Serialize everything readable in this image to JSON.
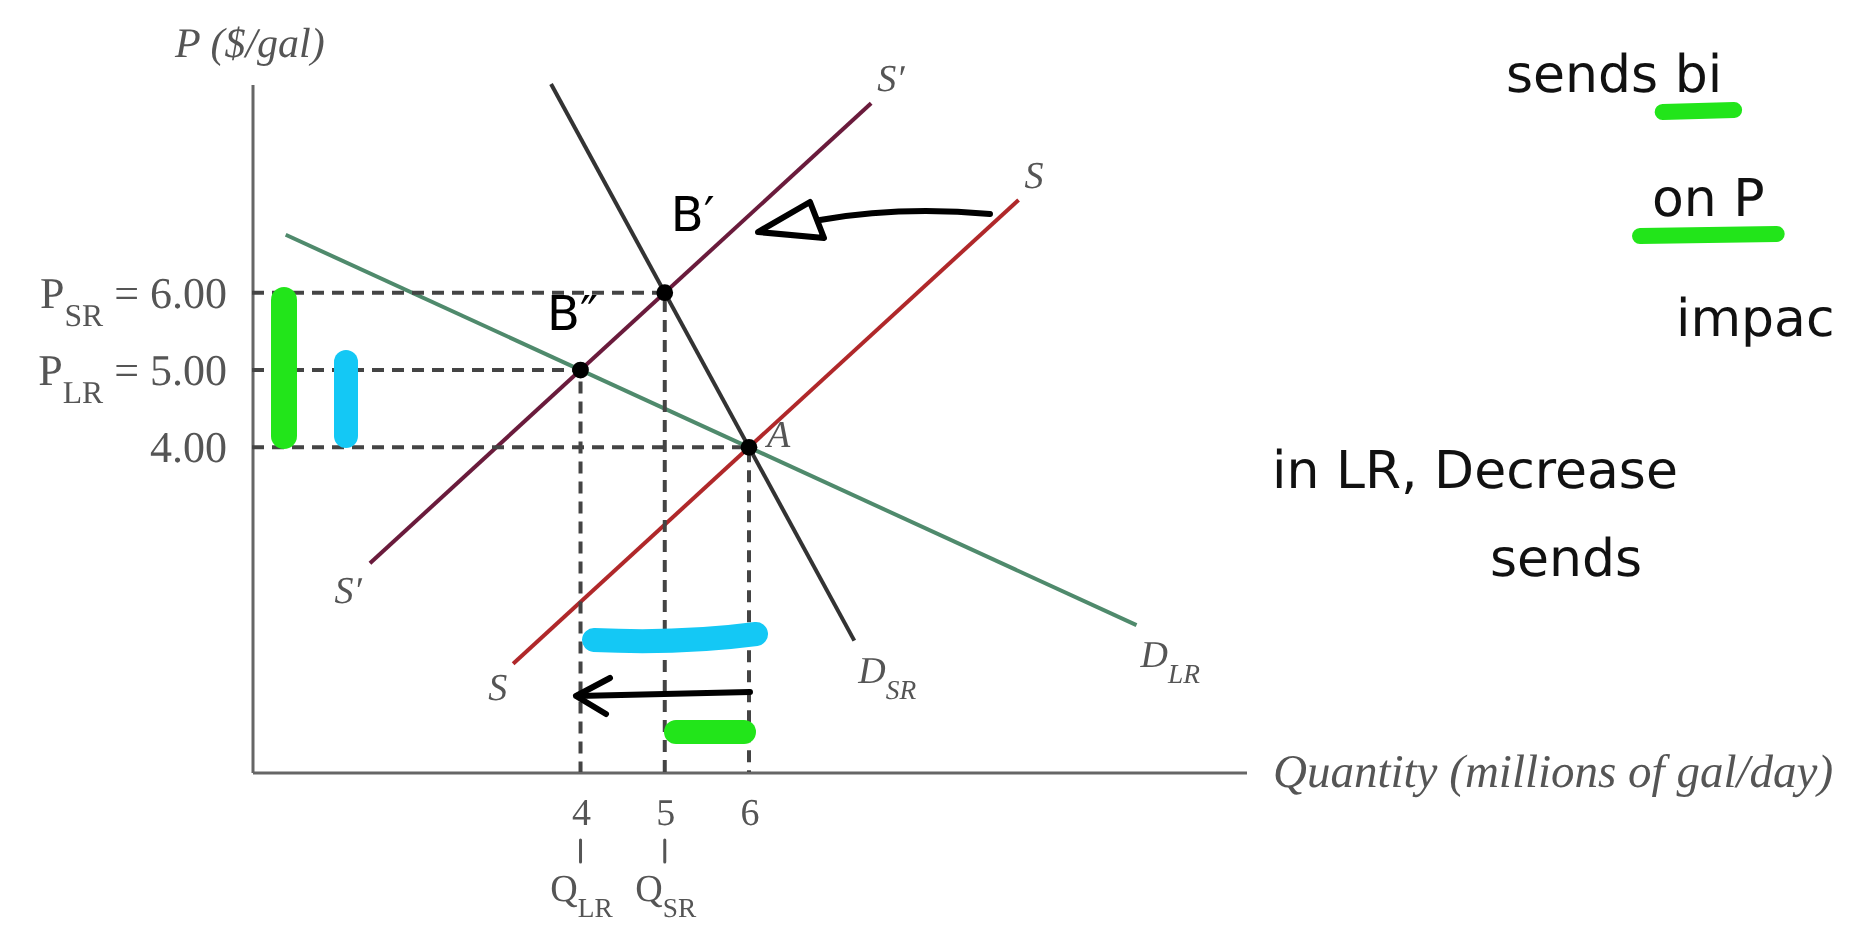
{
  "chart_data": {
    "type": "line",
    "xlabel": "Quantity (millions of gal/day)",
    "ylabel": "P ($/gal)",
    "xlim": [
      0.1,
      11.9
    ],
    "ylim": [
      -0.2,
      8.7
    ],
    "xticks": [
      {
        "value": 4,
        "label": "4\nQ$_{LR}$"
      },
      {
        "value": 5,
        "label": "5\nQ$_{SR}$"
      },
      {
        "value": 6,
        "label": "6"
      }
    ],
    "yticks": [
      {
        "value": 4,
        "label": "4.00"
      },
      {
        "value": 5,
        "label": "P$_{LR}$ = 5.00"
      },
      {
        "value": 6,
        "label": "P$_{SR}$ = 6.00"
      }
    ],
    "series": [
      {
        "name": "S′",
        "color": "#6a1b3c",
        "x": [
          1.5,
          7.45
        ],
        "values": [
          2.5,
          8.45
        ]
      },
      {
        "name": "S",
        "color": "#b0282a",
        "x": [
          3.2,
          9.2
        ],
        "values": [
          1.2,
          7.2
        ]
      },
      {
        "name": "D$_{SR}$",
        "color": "#333333",
        "x": [
          3.65,
          7.25
        ],
        "values": [
          8.7,
          1.5
        ]
      },
      {
        "name": "D$_{LR}$",
        "color": "#4f8a6c",
        "x": [
          0.5,
          10.6
        ],
        "values": [
          6.75,
          1.7
        ]
      },
      {
        "type": "line",
        "line_style": "dashed",
        "color": "#444444",
        "x": [
          0.1,
          5,
          5
        ],
        "values": [
          6,
          6,
          -0.2
        ]
      },
      {
        "type": "line",
        "line_style": "dashed",
        "color": "#444444",
        "x": [
          0.1,
          4,
          4
        ],
        "values": [
          5,
          5,
          -0.2
        ]
      },
      {
        "type": "line",
        "line_style": "dashed",
        "color": "#444444",
        "x": [
          0.1,
          6,
          6
        ],
        "values": [
          4,
          4,
          -0.2
        ]
      },
      {
        "type": "scatter",
        "color": "#000000",
        "x": [
          4,
          5,
          6
        ],
        "values": [
          5,
          6,
          4
        ]
      }
    ],
    "annotations": [
      {
        "text": "S′",
        "x": 1.5,
        "y": 2.5
      },
      {
        "text": "S",
        "x": 3.2,
        "y": 1.2
      },
      {
        "text": "A",
        "x": 6,
        "y": 4
      },
      {
        "text": "B′",
        "x": 5,
        "y": 6
      },
      {
        "text": "B″",
        "x": 4,
        "y": 5
      },
      "sends bi",
      "on P",
      "impac",
      "in LR, Decrease",
      "sends"
    ]
  }
}
